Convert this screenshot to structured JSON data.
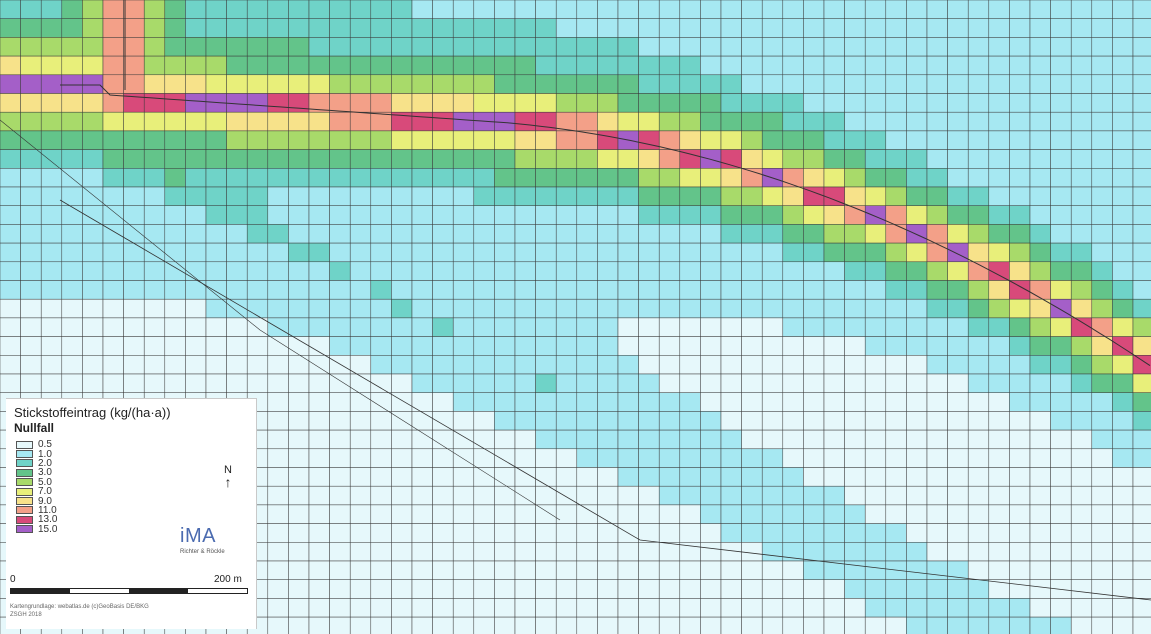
{
  "legend": {
    "title": "Stickstoffeintrag (kg/(ha·a))",
    "subtitle": "Nullfall",
    "items": [
      {
        "label": "0.5",
        "color": "#e6f8fb"
      },
      {
        "label": "1.0",
        "color": "#a6e8f2"
      },
      {
        "label": "2.0",
        "color": "#6fd3c8"
      },
      {
        "label": "3.0",
        "color": "#63c48a"
      },
      {
        "label": "5.0",
        "color": "#a8da6a"
      },
      {
        "label": "7.0",
        "color": "#e8ef7a"
      },
      {
        "label": "9.0",
        "color": "#f7e28a"
      },
      {
        "label": "11.0",
        "color": "#f3a088"
      },
      {
        "label": "13.0",
        "color": "#d84a7a"
      },
      {
        "label": "15.0",
        "color": "#a45fc8"
      }
    ]
  },
  "north": {
    "letter": "N",
    "arrow": "↑"
  },
  "logo": {
    "main": "iMA",
    "sub": "Richter & Röckle"
  },
  "scale": {
    "start": "0",
    "end": "200 m"
  },
  "credit": {
    "line1": "Kartengrundlage: webatlas.de (c)GeoBasis DE/BKG",
    "line2": "ZSGH 2018"
  },
  "map": {
    "grid_lines_color": "#3a3a3a",
    "road_color": "#333333"
  }
}
